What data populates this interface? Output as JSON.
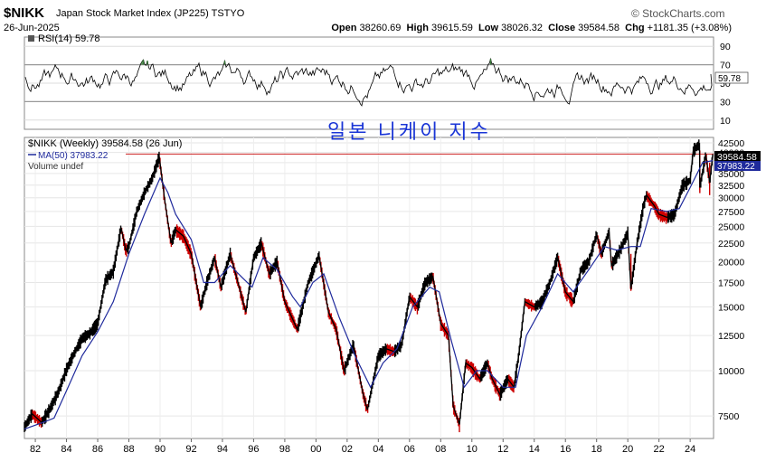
{
  "header": {
    "symbol": "$NIKK",
    "name": "Japan Stock Market Index (JP225) TSTYO",
    "date": "26-Jun-2025",
    "brand": "© StockCharts.com",
    "open_label": "Open",
    "open": "38260.69",
    "high_label": "High",
    "high": "39615.59",
    "low_label": "Low",
    "low": "38026.32",
    "close_label": "Close",
    "close": "39584.58",
    "chg_label": "Chg",
    "chg": "+1181.35 (+3.08%)"
  },
  "annotation": "일본 니케이 지수",
  "rsi_panel": {
    "legend": "RSI(14) 59.78",
    "current_value": "59.78",
    "ticks": [
      "90",
      "70",
      "50",
      "30",
      "10"
    ],
    "bands": [
      30,
      70
    ]
  },
  "price_panel": {
    "legend_main": "$NIKK (Weekly) 39584.58 (26 Jun)",
    "legend_ma": "MA(50) 37983.22",
    "legend_volume": "Volume undef",
    "last_price_label": "39584.58",
    "ma_label": "37983.22",
    "y_ticks": [
      "42500",
      "40000",
      "37500",
      "35000",
      "32500",
      "30000",
      "27500",
      "25000",
      "22500",
      "20000",
      "17500",
      "15000",
      "12500",
      "10000",
      "7500"
    ],
    "x_ticks": [
      "82",
      "84",
      "86",
      "88",
      "90",
      "92",
      "94",
      "96",
      "98",
      "00",
      "02",
      "04",
      "06",
      "08",
      "10",
      "12",
      "14",
      "16",
      "18",
      "20",
      "22",
      "24"
    ]
  },
  "colors": {
    "price": "#000000",
    "down_bar": "#cc0000",
    "ma": "#1f2a9c",
    "hline": "#cc2222",
    "annotation": "#1a35d6",
    "rsi_fill": "#3a7a3a"
  },
  "chart_data": {
    "type": "line",
    "scale": "log",
    "frequency": "weekly",
    "x_range": [
      1981.3,
      2025.5
    ],
    "ylim": [
      6500,
      44000
    ],
    "horizontal_line": 39584.58,
    "series": [
      {
        "name": "$NIKK (Weekly)",
        "points": [
          [
            1981.3,
            7000
          ],
          [
            1981.8,
            7600
          ],
          [
            1982.4,
            7200
          ],
          [
            1982.9,
            7800
          ],
          [
            1983.5,
            8800
          ],
          [
            1984.0,
            10100
          ],
          [
            1984.5,
            11200
          ],
          [
            1985.0,
            12300
          ],
          [
            1985.5,
            12700
          ],
          [
            1986.0,
            13500
          ],
          [
            1986.5,
            17800
          ],
          [
            1987.0,
            18800
          ],
          [
            1987.5,
            24800
          ],
          [
            1987.8,
            21500
          ],
          [
            1988.0,
            22000
          ],
          [
            1988.5,
            27500
          ],
          [
            1989.0,
            31000
          ],
          [
            1989.5,
            34000
          ],
          [
            1989.95,
            38900
          ],
          [
            1990.3,
            29500
          ],
          [
            1990.7,
            22500
          ],
          [
            1991.0,
            24500
          ],
          [
            1991.5,
            23500
          ],
          [
            1992.0,
            21000
          ],
          [
            1992.6,
            15000
          ],
          [
            1993.0,
            17500
          ],
          [
            1993.5,
            20500
          ],
          [
            1993.9,
            17000
          ],
          [
            1994.5,
            21000
          ],
          [
            1995.0,
            17500
          ],
          [
            1995.5,
            14500
          ],
          [
            1996.0,
            20500
          ],
          [
            1996.5,
            22500
          ],
          [
            1997.0,
            18500
          ],
          [
            1997.5,
            20000
          ],
          [
            1998.0,
            15500
          ],
          [
            1998.8,
            13000
          ],
          [
            1999.5,
            17500
          ],
          [
            2000.2,
            20800
          ],
          [
            2000.8,
            14500
          ],
          [
            2001.3,
            13000
          ],
          [
            2001.8,
            10000
          ],
          [
            2002.4,
            11800
          ],
          [
            2003.0,
            8700
          ],
          [
            2003.3,
            7800
          ],
          [
            2004.0,
            11000
          ],
          [
            2004.5,
            11500
          ],
          [
            2005.0,
            11300
          ],
          [
            2005.5,
            11800
          ],
          [
            2006.0,
            16000
          ],
          [
            2006.5,
            15000
          ],
          [
            2007.0,
            17500
          ],
          [
            2007.5,
            18200
          ],
          [
            2008.0,
            13500
          ],
          [
            2008.5,
            12500
          ],
          [
            2008.8,
            8000
          ],
          [
            2009.2,
            7100
          ],
          [
            2009.6,
            10500
          ],
          [
            2010.0,
            10200
          ],
          [
            2010.5,
            9500
          ],
          [
            2011.0,
            10500
          ],
          [
            2011.3,
            9500
          ],
          [
            2011.8,
            8600
          ],
          [
            2012.3,
            9500
          ],
          [
            2012.7,
            9000
          ],
          [
            2013.0,
            11000
          ],
          [
            2013.4,
            15500
          ],
          [
            2014.0,
            15000
          ],
          [
            2014.5,
            15500
          ],
          [
            2015.0,
            17500
          ],
          [
            2015.5,
            20600
          ],
          [
            2016.0,
            16500
          ],
          [
            2016.5,
            15500
          ],
          [
            2017.0,
            19000
          ],
          [
            2017.5,
            20000
          ],
          [
            2018.0,
            23800
          ],
          [
            2018.3,
            21000
          ],
          [
            2018.8,
            24200
          ],
          [
            2018.95,
            19500
          ],
          [
            2019.5,
            21500
          ],
          [
            2020.0,
            24000
          ],
          [
            2020.2,
            16800
          ],
          [
            2020.6,
            22500
          ],
          [
            2021.0,
            28500
          ],
          [
            2021.2,
            30500
          ],
          [
            2021.7,
            28500
          ],
          [
            2022.0,
            27000
          ],
          [
            2022.5,
            26500
          ],
          [
            2023.0,
            27000
          ],
          [
            2023.5,
            32500
          ],
          [
            2024.0,
            33500
          ],
          [
            2024.2,
            40500
          ],
          [
            2024.6,
            42200
          ],
          [
            2024.62,
            32000
          ],
          [
            2025.0,
            39500
          ],
          [
            2025.25,
            33000
          ],
          [
            2025.45,
            39584.58
          ]
        ]
      },
      {
        "name": "MA(50)",
        "points": [
          [
            1981.3,
            6900
          ],
          [
            1982.5,
            7200
          ],
          [
            1983.2,
            7400
          ],
          [
            1984.0,
            8800
          ],
          [
            1985.0,
            11000
          ],
          [
            1986.0,
            12800
          ],
          [
            1987.0,
            15500
          ],
          [
            1988.0,
            21000
          ],
          [
            1989.0,
            27000
          ],
          [
            1990.0,
            34000
          ],
          [
            1990.5,
            31000
          ],
          [
            1991.0,
            27000
          ],
          [
            1992.0,
            23000
          ],
          [
            1992.8,
            17500
          ],
          [
            1993.5,
            17500
          ],
          [
            1994.5,
            19500
          ],
          [
            1995.3,
            18000
          ],
          [
            1995.9,
            17000
          ],
          [
            1996.6,
            20500
          ],
          [
            1997.5,
            19000
          ],
          [
            1998.5,
            16000
          ],
          [
            1999.0,
            15000
          ],
          [
            1999.8,
            17500
          ],
          [
            2000.5,
            18500
          ],
          [
            2001.5,
            14000
          ],
          [
            2002.5,
            11000
          ],
          [
            2003.5,
            9000
          ],
          [
            2004.3,
            10500
          ],
          [
            2005.2,
            11500
          ],
          [
            2006.2,
            15000
          ],
          [
            2007.3,
            17000
          ],
          [
            2007.9,
            16500
          ],
          [
            2008.7,
            12000
          ],
          [
            2009.5,
            9000
          ],
          [
            2010.3,
            10000
          ],
          [
            2011.0,
            10000
          ],
          [
            2012.0,
            9000
          ],
          [
            2012.8,
            9000
          ],
          [
            2013.5,
            12500
          ],
          [
            2014.5,
            15000
          ],
          [
            2015.5,
            18500
          ],
          [
            2016.5,
            16500
          ],
          [
            2017.5,
            19000
          ],
          [
            2018.5,
            22000
          ],
          [
            2019.3,
            21500
          ],
          [
            2020.2,
            22000
          ],
          [
            2020.8,
            22000
          ],
          [
            2021.5,
            28000
          ],
          [
            2022.5,
            27500
          ],
          [
            2023.3,
            28000
          ],
          [
            2024.0,
            32000
          ],
          [
            2024.8,
            37500
          ],
          [
            2025.45,
            37983.22
          ]
        ]
      }
    ]
  }
}
